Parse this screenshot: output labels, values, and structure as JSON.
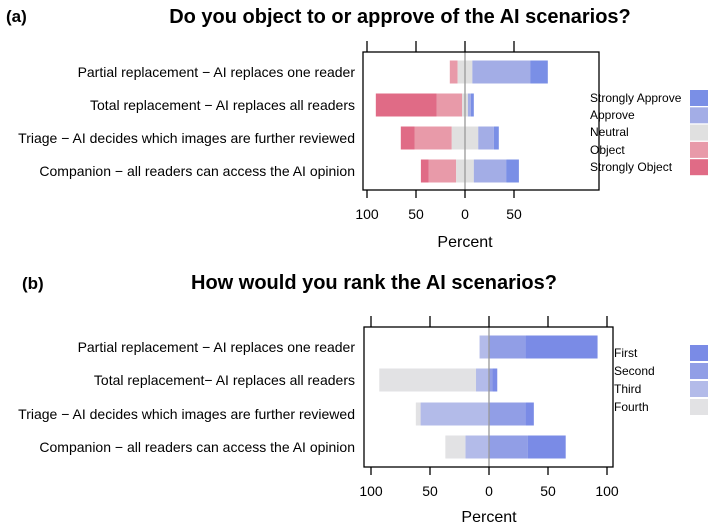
{
  "chart_data": [
    {
      "type": "bar",
      "orientation": "horizontal-diverging",
      "panel_label": "(a)",
      "title": "Do you object to or approve of the AI scenarios?",
      "xlabel": "Percent",
      "xticks": [
        "100",
        "50",
        "0",
        "50"
      ],
      "xlim": [
        -100,
        90
      ],
      "grid": false,
      "legend_position": "right",
      "categories": [
        "Partial replacement − AI replaces one reader",
        "Total replacement − AI replaces all readers",
        "Triage − AI decides which images are further reviewed",
        "Companion − all readers can access the AI opinion"
      ],
      "series": [
        {
          "name": "Strongly Object",
          "side": "negative",
          "color": "#e06b86",
          "values": [
            0,
            62,
            14,
            8
          ]
        },
        {
          "name": "Object",
          "side": "negative",
          "color": "#e89aa9",
          "values": [
            8,
            26,
            38,
            28
          ]
        },
        {
          "name": "Neutral",
          "side": "center",
          "color": "#e0e0e0",
          "values": [
            15,
            6,
            27,
            18
          ]
        },
        {
          "name": "Approve",
          "side": "positive",
          "color": "#a3ade6",
          "values": [
            59,
            3,
            16,
            33
          ]
        },
        {
          "name": "Strongly Approve",
          "side": "positive",
          "color": "#7a8fe6",
          "values": [
            18,
            3,
            5,
            13
          ]
        }
      ],
      "legend_order": [
        "Strongly Approve",
        "Approve",
        "Neutral",
        "Object",
        "Strongly Object"
      ]
    },
    {
      "type": "bar",
      "orientation": "horizontal-diverging",
      "panel_label": "(b)",
      "title": "How would you rank the AI scenarios?",
      "xlabel": "Percent",
      "xticks": [
        "100",
        "50",
        "0",
        "50",
        "100"
      ],
      "xlim": [
        -100,
        100
      ],
      "grid": false,
      "legend_position": "right",
      "categories": [
        "Partial replacement − AI replaces one reader",
        "Total replacement− AI replaces all readers",
        "Triage − AI decides which images are further reviewed",
        "Companion − all readers can access the AI opinion"
      ],
      "series": [
        {
          "name": "Fourth",
          "side": "negative",
          "color": "#e2e2e4",
          "values": [
            0,
            82,
            4,
            17
          ]
        },
        {
          "name": "Third",
          "side": "negative",
          "color": "#b3bbe9",
          "values": [
            8,
            11,
            58,
            20
          ]
        },
        {
          "name": "Second",
          "side": "positive",
          "color": "#919ee6",
          "values": [
            31,
            3,
            31,
            33
          ]
        },
        {
          "name": "First",
          "side": "positive",
          "color": "#7a8be6",
          "values": [
            61,
            4,
            7,
            32
          ]
        }
      ],
      "legend_order": [
        "First",
        "Second",
        "Third",
        "Fourth"
      ]
    }
  ]
}
